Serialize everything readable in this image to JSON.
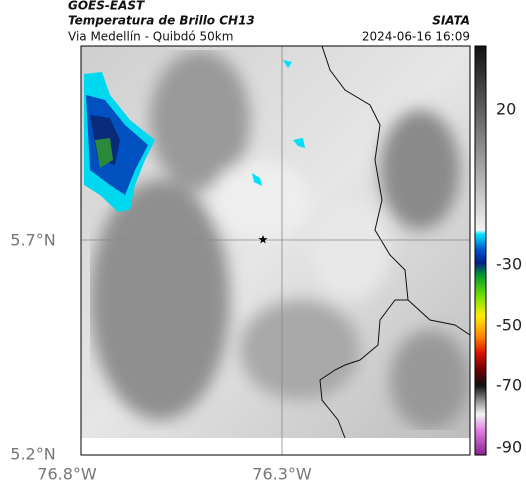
{
  "header": {
    "title": "GOES-EAST",
    "subtitle": "Temperatura de Brillo CH13",
    "source": "SIATA",
    "route": "Via Medellín - Quibdó 50km",
    "timestamp": "2024-06-16 16:09"
  },
  "axes": {
    "lat_labels": [
      "5.7°N",
      "5.2°N"
    ],
    "lon_labels": [
      "76.8°W",
      "76.3°W"
    ]
  },
  "colorbar": {
    "labels": [
      "20",
      "-30",
      "-50",
      "-70",
      "-90"
    ]
  }
}
